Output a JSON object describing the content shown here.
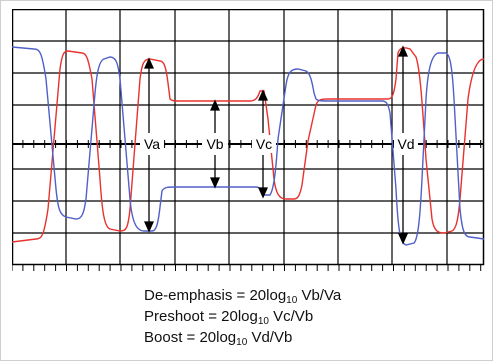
{
  "labels": {
    "va": "Va",
    "vb": "Vb",
    "vc": "Vc",
    "vd": "Vd"
  },
  "formulas": [
    {
      "pre": "De-emphasis = 20log",
      "sub": "10",
      "post": " Vb/Va"
    },
    {
      "pre": "Preshoot = 20log",
      "sub": "10",
      "post": " Vc/Vb"
    },
    {
      "pre": "Boost = 20log",
      "sub": "10",
      "post": " Vd/Vb"
    }
  ],
  "colors": {
    "red_trace": "#e8322e",
    "blue_trace": "#5060c8",
    "grid": "#000000",
    "arrow": "#000000"
  }
}
